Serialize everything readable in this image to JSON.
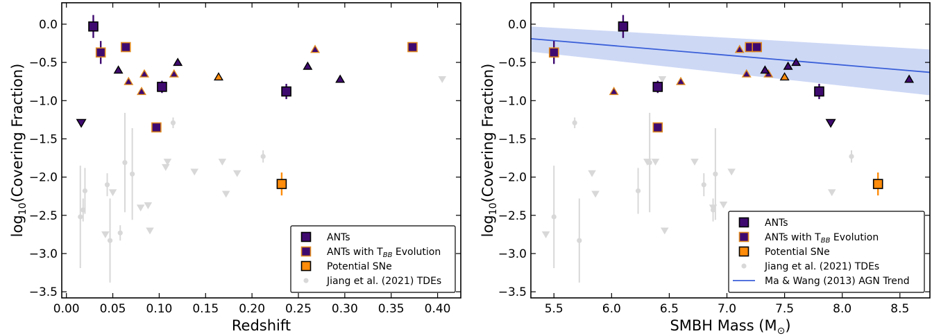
{
  "colors": {
    "ant": "#3f0a70",
    "ant_edge": "#000000",
    "tbb_edge": "#e08a1e",
    "sne": "#ff8c0a",
    "tde": "#d8d8d8",
    "trend_line": "#3a5fd8",
    "trend_band": "#c8d4f4"
  },
  "chart_data": [
    {
      "type": "scatter",
      "xlabel": "Redshift",
      "ylabel_base": "log",
      "ylabel_sub": "10",
      "ylabel_rest": "(Covering Fraction)",
      "xlim": [
        -0.005,
        0.425
      ],
      "ylim": [
        -3.58,
        0.28
      ],
      "xticks": [
        0.0,
        0.05,
        0.1,
        0.15,
        0.2,
        0.25,
        0.3,
        0.35,
        0.4
      ],
      "xtick_labels": [
        "0.00",
        "0.05",
        "0.10",
        "0.15",
        "0.20",
        "0.25",
        "0.30",
        "0.35",
        "0.40"
      ],
      "yticks": [
        0.0,
        -0.5,
        -1.0,
        -1.5,
        -2.0,
        -2.5,
        -3.0,
        -3.5
      ],
      "ytick_labels": [
        "0.0",
        "−0.5",
        "−1.0",
        "−1.5",
        "−2.0",
        "−2.5",
        "−3.0",
        "−3.5"
      ],
      "legend_position": "bottom-right",
      "legend": [
        {
          "label": "ANTs",
          "marker": "ant"
        },
        {
          "label_pre": "ANTs with T",
          "label_sub": "BB",
          "label_post": " Evolution",
          "marker": "tbb"
        },
        {
          "label": "Potential SNe",
          "marker": "sne"
        },
        {
          "label": "Jiang et al. (2021) TDEs",
          "marker": "tde"
        }
      ],
      "series": {
        "ant_squares": [
          {
            "x": 0.029,
            "y": -0.03,
            "err": 0.15
          },
          {
            "x": 0.103,
            "y": -0.82,
            "err": 0.08
          },
          {
            "x": 0.237,
            "y": -0.88,
            "err": 0.1
          }
        ],
        "ant_triangles": [
          {
            "x": 0.056,
            "y": -0.6
          },
          {
            "x": 0.12,
            "y": -0.5
          },
          {
            "x": 0.26,
            "y": -0.55
          },
          {
            "x": 0.295,
            "y": -0.72
          }
        ],
        "ant_down": [
          {
            "x": 0.016,
            "y": -1.29
          }
        ],
        "tbb_squares": [
          {
            "x": 0.037,
            "y": -0.37,
            "err": 0.15
          },
          {
            "x": 0.064,
            "y": -0.3,
            "err": 0.05
          },
          {
            "x": 0.097,
            "y": -1.35,
            "err": 0.04
          },
          {
            "x": 0.373,
            "y": -0.3,
            "err": 0.05
          }
        ],
        "tbb_triangles": [
          {
            "x": 0.067,
            "y": -0.75
          },
          {
            "x": 0.081,
            "y": -0.88
          },
          {
            "x": 0.084,
            "y": -0.65
          },
          {
            "x": 0.116,
            "y": -0.65
          },
          {
            "x": 0.268,
            "y": -0.33
          }
        ],
        "sne_squares": [
          {
            "x": 0.232,
            "y": -2.09,
            "err": 0.15
          }
        ],
        "sne_triangles": [
          {
            "x": 0.164,
            "y": -0.69
          }
        ],
        "tde_points": [
          {
            "x": 0.015,
            "y": -2.52,
            "lo": 0.67,
            "hi": 0.67
          },
          {
            "x": 0.018,
            "y": -2.43,
            "lo": 0.15,
            "hi": 0.15
          },
          {
            "x": 0.02,
            "y": -2.18,
            "lo": 0.3,
            "hi": 0.3
          },
          {
            "x": 0.044,
            "y": -2.1,
            "lo": 0.15,
            "hi": 0.15
          },
          {
            "x": 0.047,
            "y": -2.83,
            "lo": 0.55,
            "hi": 0.55
          },
          {
            "x": 0.058,
            "y": -2.73,
            "lo": 0.1,
            "hi": 0.1
          },
          {
            "x": 0.063,
            "y": -1.81,
            "lo": 0.65,
            "hi": 0.65
          },
          {
            "x": 0.071,
            "y": -1.96,
            "lo": 0.6,
            "hi": 0.6
          },
          {
            "x": 0.115,
            "y": -1.29,
            "lo": 0.07,
            "hi": 0.07
          },
          {
            "x": 0.212,
            "y": -1.73,
            "lo": 0.08,
            "hi": 0.08
          }
        ],
        "tde_limits": [
          {
            "x": 0.042,
            "y": -2.75
          },
          {
            "x": 0.05,
            "y": -2.2
          },
          {
            "x": 0.08,
            "y": -2.4
          },
          {
            "x": 0.088,
            "y": -2.37
          },
          {
            "x": 0.09,
            "y": -2.7
          },
          {
            "x": 0.107,
            "y": -1.87
          },
          {
            "x": 0.109,
            "y": -1.8
          },
          {
            "x": 0.138,
            "y": -1.93
          },
          {
            "x": 0.168,
            "y": -1.8
          },
          {
            "x": 0.172,
            "y": -2.22
          },
          {
            "x": 0.184,
            "y": -1.95
          },
          {
            "x": 0.405,
            "y": -0.72
          }
        ]
      }
    },
    {
      "type": "scatter",
      "xlabel_pre": "SMBH Mass (M",
      "xlabel_sub": "⊙",
      "xlabel_post": ")",
      "ylabel_base": "log",
      "ylabel_sub": "10",
      "ylabel_rest": "(Covering Fraction)",
      "xlim": [
        5.3,
        8.76
      ],
      "ylim": [
        -3.58,
        0.28
      ],
      "xticks": [
        5.5,
        6.0,
        6.5,
        7.0,
        7.5,
        8.0,
        8.5
      ],
      "xtick_labels": [
        "5.5",
        "6.0",
        "6.5",
        "7.0",
        "7.5",
        "8.0",
        "8.5"
      ],
      "yticks": [
        0.0,
        -0.5,
        -1.0,
        -1.5,
        -2.0,
        -2.5,
        -3.0,
        -3.5
      ],
      "ytick_labels": [
        "0.0",
        "−0.5",
        "−1.0",
        "−1.5",
        "−2.0",
        "−2.5",
        "−3.0",
        "−3.5"
      ],
      "legend_position": "bottom-right",
      "legend": [
        {
          "label": "ANTs",
          "marker": "ant"
        },
        {
          "label_pre": "ANTs with T",
          "label_sub": "BB",
          "label_post": " Evolution",
          "marker": "tbb"
        },
        {
          "label": "Potential SNe",
          "marker": "sne"
        },
        {
          "label": "Jiang et al. (2021) TDEs",
          "marker": "tde"
        },
        {
          "label": "Ma & Wang (2013) AGN Trend",
          "marker": "line"
        }
      ],
      "trend": {
        "x": [
          5.3,
          8.76
        ],
        "y": [
          -0.19,
          -0.63
        ],
        "band_upper": [
          -0.03,
          -0.33
        ],
        "band_lower": [
          -0.36,
          -0.93
        ]
      },
      "series": {
        "ant_squares": [
          {
            "x": 6.1,
            "y": -0.03,
            "err": 0.15
          },
          {
            "x": 6.4,
            "y": -0.82,
            "err": 0.08
          },
          {
            "x": 7.8,
            "y": -0.88,
            "err": 0.1
          }
        ],
        "ant_triangles": [
          {
            "x": 7.33,
            "y": -0.6
          },
          {
            "x": 7.53,
            "y": -0.55
          },
          {
            "x": 7.6,
            "y": -0.5
          },
          {
            "x": 8.58,
            "y": -0.72
          }
        ],
        "ant_down": [
          {
            "x": 7.9,
            "y": -1.29
          }
        ],
        "tbb_squares": [
          {
            "x": 5.5,
            "y": -0.37,
            "err": 0.15
          },
          {
            "x": 6.4,
            "y": -1.35,
            "err": 0.04
          },
          {
            "x": 7.2,
            "y": -0.3,
            "err": 0.05
          },
          {
            "x": 7.26,
            "y": -0.3,
            "err": 0.05
          }
        ],
        "tbb_triangles": [
          {
            "x": 6.02,
            "y": -0.88
          },
          {
            "x": 6.6,
            "y": -0.75
          },
          {
            "x": 7.11,
            "y": -0.33
          },
          {
            "x": 7.17,
            "y": -0.65
          },
          {
            "x": 7.36,
            "y": -0.65
          }
        ],
        "sne_squares": [
          {
            "x": 8.31,
            "y": -2.09,
            "err": 0.15
          }
        ],
        "sne_triangles": [
          {
            "x": 7.5,
            "y": -0.69
          }
        ],
        "tde_points": [
          {
            "x": 5.5,
            "y": -2.52,
            "lo": 0.67,
            "hi": 0.67
          },
          {
            "x": 5.68,
            "y": -1.29,
            "lo": 0.07,
            "hi": 0.07
          },
          {
            "x": 5.72,
            "y": -2.83,
            "lo": 0.55,
            "hi": 0.55
          },
          {
            "x": 6.23,
            "y": -2.18,
            "lo": 0.3,
            "hi": 0.3
          },
          {
            "x": 6.33,
            "y": -1.81,
            "lo": 0.65,
            "hi": 0.65
          },
          {
            "x": 6.8,
            "y": -2.1,
            "lo": 0.15,
            "hi": 0.15
          },
          {
            "x": 6.88,
            "y": -2.43,
            "lo": 0.15,
            "hi": 0.15
          },
          {
            "x": 6.9,
            "y": -1.96,
            "lo": 0.6,
            "hi": 0.6
          },
          {
            "x": 8.08,
            "y": -1.73,
            "lo": 0.08,
            "hi": 0.08
          }
        ],
        "tde_limits": [
          {
            "x": 5.43,
            "y": -2.75
          },
          {
            "x": 5.83,
            "y": -1.95
          },
          {
            "x": 5.86,
            "y": -2.22
          },
          {
            "x": 6.31,
            "y": -1.8
          },
          {
            "x": 6.38,
            "y": -1.8
          },
          {
            "x": 6.44,
            "y": -0.72
          },
          {
            "x": 6.46,
            "y": -2.7
          },
          {
            "x": 6.72,
            "y": -1.8
          },
          {
            "x": 6.88,
            "y": -2.4
          },
          {
            "x": 6.97,
            "y": -2.36
          },
          {
            "x": 7.04,
            "y": -1.93
          },
          {
            "x": 7.91,
            "y": -2.2
          }
        ]
      }
    }
  ]
}
